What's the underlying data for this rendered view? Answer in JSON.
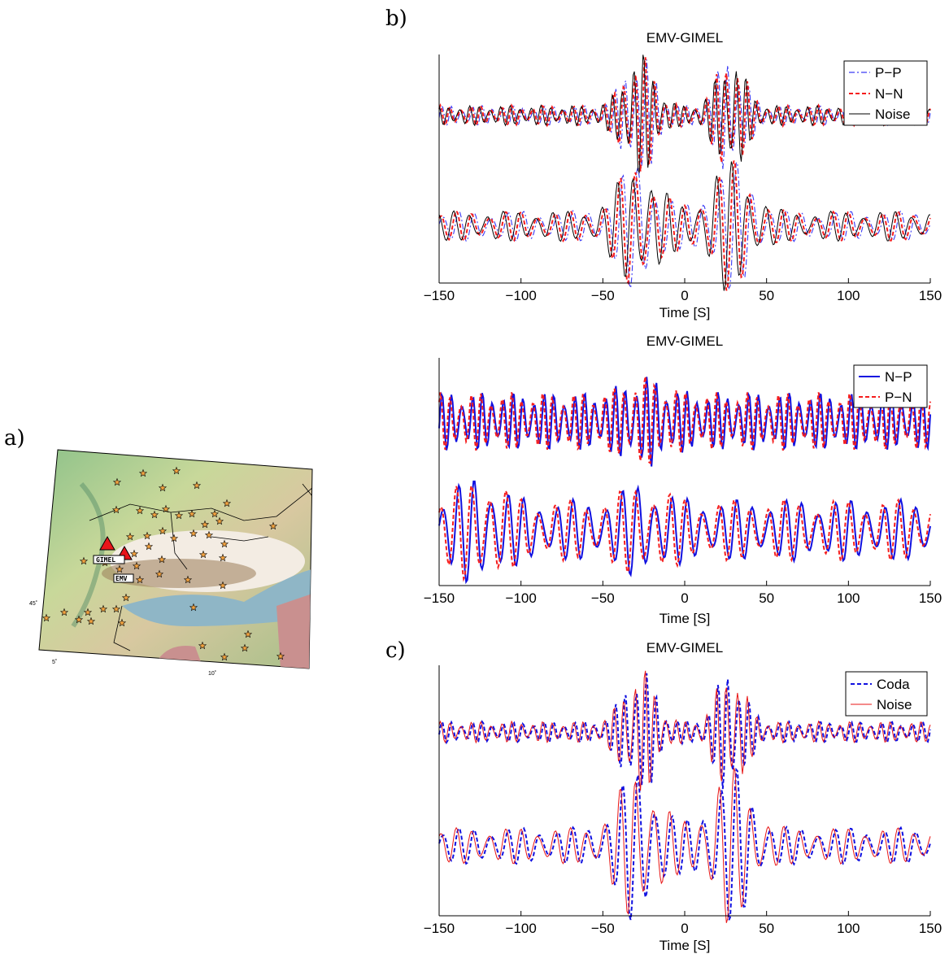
{
  "panel_labels": {
    "a": "a)",
    "b": "b)",
    "c": "c)"
  },
  "map": {
    "station_labels": [
      "GIMEL",
      "EMV"
    ],
    "lat_tick": "45˚",
    "lon_ticks": [
      "5˚",
      "10˚"
    ],
    "colors": {
      "station": "#e8151a",
      "event": "#f4a340",
      "water": "#8fb6c6",
      "country": "#c9908f"
    }
  },
  "chart_data": [
    {
      "type": "line",
      "title": "EMV-GIMEL",
      "xlabel": "Time [S]",
      "ylabel": "",
      "xlim": [
        -150,
        150
      ],
      "xticks": [
        -150,
        -100,
        -50,
        0,
        50,
        100,
        150
      ],
      "xtick_labels": [
        "−150",
        "−100",
        "−50",
        "0",
        "50",
        "100",
        "150"
      ],
      "legend_position": "top-right",
      "series": [
        {
          "name": "P−P",
          "color": "#3a3af5",
          "style": "dashdot"
        },
        {
          "name": "N−N",
          "color": "#f51d1d",
          "style": "dashed"
        },
        {
          "name": "Noise",
          "color": "#000000",
          "style": "solid"
        }
      ]
    },
    {
      "type": "line",
      "title": "EMV-GIMEL",
      "xlabel": "Time [S]",
      "ylabel": "",
      "xlim": [
        -150,
        150
      ],
      "xticks": [
        -150,
        -100,
        -50,
        0,
        50,
        100,
        150
      ],
      "xtick_labels": [
        "−150",
        "−100",
        "−50",
        "0",
        "50",
        "100",
        "150"
      ],
      "legend_position": "top-right",
      "series": [
        {
          "name": "N−P",
          "color": "#1010e0",
          "style": "solid"
        },
        {
          "name": "P−N",
          "color": "#f51d1d",
          "style": "dashed"
        }
      ]
    },
    {
      "type": "line",
      "title": "EMV-GIMEL",
      "xlabel": "Time [S]",
      "ylabel": "",
      "xlim": [
        -150,
        150
      ],
      "xticks": [
        -150,
        -100,
        -50,
        0,
        50,
        100,
        150
      ],
      "xtick_labels": [
        "−150",
        "−100",
        "−50",
        "0",
        "50",
        "100",
        "150"
      ],
      "legend_position": "top-right",
      "series": [
        {
          "name": "Coda",
          "color": "#1010e0",
          "style": "dashed"
        },
        {
          "name": "Noise",
          "color": "#e81515",
          "style": "solid"
        }
      ]
    }
  ]
}
